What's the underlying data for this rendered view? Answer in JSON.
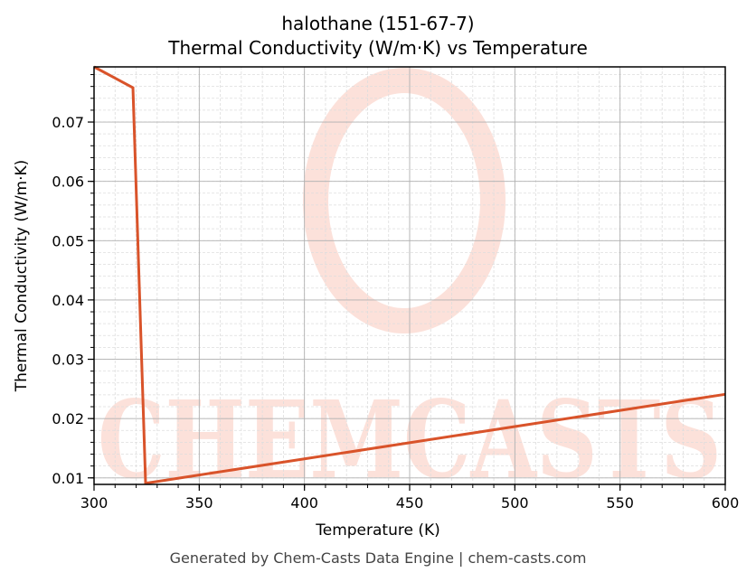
{
  "header": {
    "title_line1": "halothane (151-67-7)",
    "title_line2": "Thermal Conductivity (W/m·K) vs Temperature"
  },
  "footer": {
    "text": "Generated by Chem-Casts Data Engine | chem-casts.com"
  },
  "watermark": {
    "text": "CHEMCASTS",
    "color": "#fcdcd4"
  },
  "colors": {
    "line": "#d9532a",
    "major_grid": "#b0b0b0",
    "minor_grid": "#dddddd",
    "axis": "#000000"
  },
  "chart_data": {
    "type": "line",
    "title": "halothane (151-67-7)\nThermal Conductivity (W/m·K) vs Temperature",
    "xlabel": "Temperature (K)",
    "ylabel": "Thermal Conductivity (W/m·K)",
    "xlim": [
      300,
      600
    ],
    "ylim": [
      0.0089,
      0.0793
    ],
    "xticks": [
      300,
      350,
      400,
      450,
      500,
      550,
      600
    ],
    "yticks": [
      0.01,
      0.02,
      0.03,
      0.04,
      0.05,
      0.06,
      0.07
    ],
    "ytick_labels": [
      "0.01",
      "0.02",
      "0.03",
      "0.04",
      "0.05",
      "0.06",
      "0.07"
    ],
    "grid": true,
    "legend": null,
    "series": [
      {
        "name": "halothane",
        "x": [
          300,
          318.5,
          324.5,
          600
        ],
        "y": [
          0.0793,
          0.0758,
          0.0091,
          0.0241
        ]
      }
    ]
  }
}
